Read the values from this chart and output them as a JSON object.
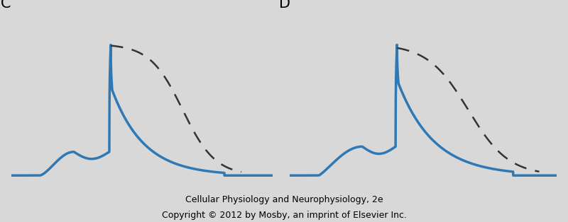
{
  "background_color": "#d8d8d8",
  "panel_bg": "#d8d8d8",
  "blue_color": "#2e79b5",
  "dashed_color": "#333333",
  "label_C": "C",
  "label_D": "D",
  "footer_line1": "Cellular Physiology and Neurophysiology, 2e",
  "footer_line2": "Copyright © 2012 by Mosby, an imprint of Elsevier Inc.",
  "footer_fontsize": 9,
  "label_fontsize": 15
}
